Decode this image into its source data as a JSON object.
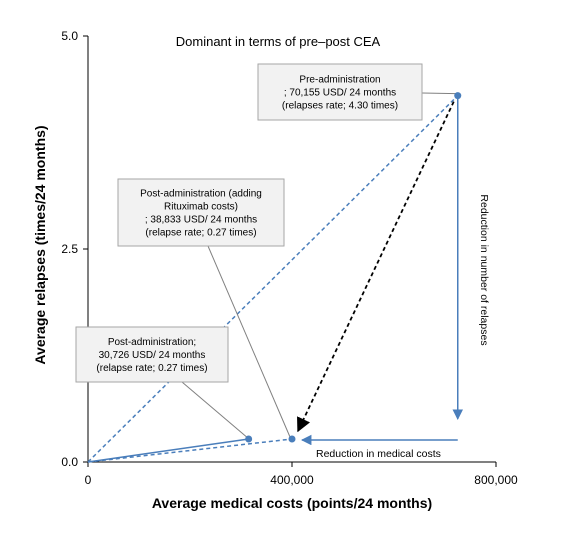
{
  "chart_data": {
    "type": "scatter",
    "title": "Dominant in terms of  pre–post  CEA",
    "xlabel": "Average medical costs (points/24 months)",
    "ylabel": "Average relapses (times/24 months)",
    "xlim": [
      0,
      800000
    ],
    "ylim": [
      0,
      5.0
    ],
    "x_ticks": [
      0,
      400000,
      800000
    ],
    "x_tick_labels": [
      "0",
      "400,000",
      "800,000"
    ],
    "y_ticks": [
      0,
      2.5,
      5.0
    ],
    "y_tick_labels": [
      "0.0",
      "2.5",
      "5.0"
    ],
    "grid": false,
    "legend": "none",
    "points": [
      {
        "id": "post",
        "x": 315000,
        "y": 0.27
      },
      {
        "id": "post_rituximab",
        "x": 400000,
        "y": 0.27
      },
      {
        "id": "pre",
        "x": 725000,
        "y": 4.3
      }
    ],
    "annotations": [
      {
        "id": "pre",
        "lines": [
          "Pre-administration",
          "; 70,155 USD/ 24 months",
          "(relapses rate; 4.30 times)"
        ]
      },
      {
        "id": "post_rituximab",
        "lines": [
          "Post-administration (adding",
          "Rituximab costs)",
          "; 38,833 USD/ 24 months",
          "(relapse rate; 0.27 times)"
        ]
      },
      {
        "id": "post",
        "lines": [
          "Post-administration;",
          "30,726 USD/ 24 months",
          "(relapse rate; 0.27 times)"
        ]
      }
    ],
    "arrow_labels": {
      "cost": "Reduction in medical costs",
      "relapse": "Reduction in number of relapses"
    },
    "colors": {
      "series": "#4a7ebb",
      "box_fill": "#f2f2f2",
      "box_border": "#a6a6a6",
      "connector": "#808080",
      "shift_arrow": "#000000"
    }
  }
}
